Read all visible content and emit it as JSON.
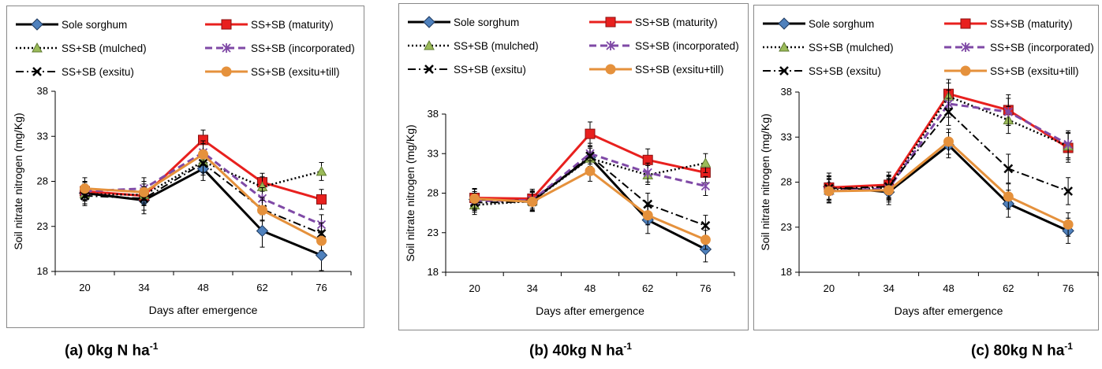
{
  "shared": {
    "xlabel": "Days after emergence",
    "ylabel": "Soil nitrate nitrogen (mg/Kg)",
    "categories": [
      "20",
      "34",
      "48",
      "62",
      "76"
    ],
    "yticks": [
      "18",
      "23",
      "28",
      "33",
      "38"
    ],
    "ylim": [
      18,
      38
    ]
  },
  "series_styles": [
    {
      "name": "Sole sorghum",
      "color": "#000000",
      "dash": "",
      "width": 3,
      "marker": "diamond",
      "marker_color": "#4f81bd"
    },
    {
      "name": "SS+SB (maturity)",
      "color": "#e8201e",
      "dash": "",
      "width": 3,
      "marker": "square",
      "marker_color": "#e8201e"
    },
    {
      "name": "SS+SB (mulched)",
      "color": "#000000",
      "dash": "2,3",
      "width": 2.5,
      "marker": "triangle",
      "marker_color": "#9bbb59"
    },
    {
      "name": "SS+SB (incorporated)",
      "color": "#7f49a6",
      "dash": "9,5",
      "width": 3,
      "marker": "star",
      "marker_color": "#7f49a6"
    },
    {
      "name": "SS+SB (exsitu)",
      "color": "#000000",
      "dash": "10,4,2,4",
      "width": 2,
      "marker": "x",
      "marker_color": "#000000"
    },
    {
      "name": "SS+SB (exsitu+till)",
      "color": "#e5913c",
      "dash": "",
      "width": 3,
      "marker": "circle",
      "marker_color": "#e5913c"
    }
  ],
  "chart_data": [
    {
      "type": "line",
      "caption_main": "(a)  0kg N ha",
      "caption_sup": "-1",
      "xlabel": "Days after emergence",
      "ylabel": "Soil nitrate nitrogen (mg/Kg)",
      "categories": [
        "20",
        "34",
        "48",
        "62",
        "76"
      ],
      "ylim": [
        18,
        38
      ],
      "series": [
        {
          "name": "Sole sorghum",
          "values": [
            26.7,
            25.9,
            29.4,
            22.5,
            19.8
          ],
          "errors": [
            1.2,
            1.5,
            1.3,
            1.8,
            1.7
          ]
        },
        {
          "name": "SS+SB (maturity)",
          "values": [
            26.9,
            26.4,
            32.6,
            27.9,
            26.0
          ],
          "errors": [
            1.0,
            1.0,
            1.1,
            1.0,
            1.1
          ]
        },
        {
          "name": "SS+SB (mulched)",
          "values": [
            26.6,
            26.5,
            30.2,
            27.4,
            29.1
          ],
          "errors": [
            1.1,
            1.2,
            1.2,
            1.1,
            1.0
          ]
        },
        {
          "name": "SS+SB (incorporated)",
          "values": [
            26.9,
            27.2,
            31.2,
            26.1,
            23.2
          ],
          "errors": [
            1.1,
            1.2,
            1.3,
            1.2,
            1.1
          ]
        },
        {
          "name": "SS+SB (exsitu)",
          "values": [
            26.4,
            26.1,
            30.0,
            24.9,
            22.2
          ],
          "errors": [
            1.1,
            1.3,
            1.3,
            1.3,
            1.2
          ]
        },
        {
          "name": "SS+SB (exsitu+till)",
          "values": [
            27.2,
            26.8,
            31.0,
            24.8,
            21.4
          ],
          "errors": [
            1.2,
            1.2,
            1.2,
            1.1,
            1.1
          ]
        }
      ]
    },
    {
      "type": "line",
      "caption_main": "(b) 40kg N ha",
      "caption_sup": "-1",
      "xlabel": "Days after emergence",
      "ylabel": "Soil nitrate nitrogen (mg/Kg)",
      "categories": [
        "20",
        "34",
        "48",
        "62",
        "76"
      ],
      "ylim": [
        18,
        38
      ],
      "series": [
        {
          "name": "Sole sorghum",
          "values": [
            27.2,
            27.1,
            32.5,
            24.6,
            20.9
          ],
          "errors": [
            1.3,
            1.4,
            1.4,
            1.7,
            1.6
          ]
        },
        {
          "name": "SS+SB (maturity)",
          "values": [
            27.4,
            27.3,
            35.5,
            32.2,
            30.6
          ],
          "errors": [
            1.2,
            1.2,
            1.5,
            1.4,
            1.3
          ]
        },
        {
          "name": "SS+SB (mulched)",
          "values": [
            26.5,
            27.0,
            32.4,
            30.3,
            31.8
          ],
          "errors": [
            1.2,
            1.2,
            1.3,
            1.2,
            1.2
          ]
        },
        {
          "name": "SS+SB (incorporated)",
          "values": [
            27.0,
            27.1,
            33.0,
            30.6,
            28.9
          ],
          "errors": [
            1.2,
            1.2,
            1.3,
            1.2,
            1.2
          ]
        },
        {
          "name": "SS+SB (exsitu)",
          "values": [
            26.8,
            26.9,
            32.7,
            26.6,
            23.9
          ],
          "errors": [
            1.2,
            1.2,
            1.3,
            1.4,
            1.3
          ]
        },
        {
          "name": "SS+SB (exsitu+till)",
          "values": [
            27.3,
            26.9,
            30.8,
            25.2,
            22.1
          ],
          "errors": [
            1.2,
            1.2,
            1.3,
            1.2,
            1.2
          ]
        }
      ]
    },
    {
      "type": "line",
      "caption_main": "(c) 80kg N ha",
      "caption_sup": "-1",
      "xlabel": "Days after emergence",
      "ylabel": "Soil nitrate nitrogen (mg/Kg)",
      "categories": [
        "20",
        "34",
        "48",
        "62",
        "76"
      ],
      "ylim": [
        18,
        38
      ],
      "series": [
        {
          "name": "Sole sorghum",
          "values": [
            27.5,
            26.9,
            32.1,
            25.6,
            22.6
          ],
          "errors": [
            1.5,
            1.4,
            1.4,
            1.5,
            1.4
          ]
        },
        {
          "name": "SS+SB (maturity)",
          "values": [
            27.4,
            27.7,
            37.8,
            36.0,
            31.8
          ],
          "errors": [
            1.3,
            1.4,
            1.6,
            1.7,
            1.6
          ]
        },
        {
          "name": "SS+SB (mulched)",
          "values": [
            27.1,
            27.4,
            37.5,
            34.9,
            32.0
          ],
          "errors": [
            1.3,
            1.3,
            1.5,
            1.5,
            1.5
          ]
        },
        {
          "name": "SS+SB (incorporated)",
          "values": [
            27.0,
            27.3,
            36.7,
            35.8,
            32.2
          ],
          "errors": [
            1.3,
            1.3,
            1.5,
            1.5,
            1.5
          ]
        },
        {
          "name": "SS+SB (exsitu)",
          "values": [
            27.3,
            27.5,
            35.8,
            29.5,
            27.0
          ],
          "errors": [
            1.3,
            1.3,
            1.5,
            1.6,
            1.5
          ]
        },
        {
          "name": "SS+SB (exsitu+till)",
          "values": [
            27.0,
            27.1,
            32.5,
            26.4,
            23.3
          ],
          "errors": [
            1.3,
            1.3,
            1.4,
            1.4,
            1.3
          ]
        }
      ]
    }
  ]
}
